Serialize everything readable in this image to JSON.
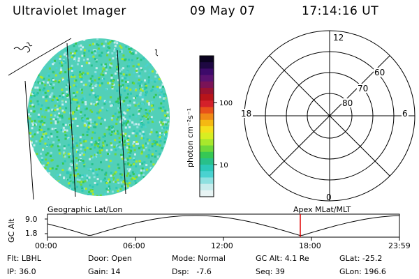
{
  "header": {
    "title": "Ultraviolet Imager",
    "date": "09 May 07",
    "time": "17:14:16 UT"
  },
  "colorbar": {
    "unit_label": "photon cm⁻²s⁻¹",
    "ticks": [
      "100",
      "10"
    ],
    "colors": [
      "#0b0320",
      "#1e0842",
      "#3d0a6a",
      "#5a1270",
      "#7a1357",
      "#9a1230",
      "#b8141a",
      "#d4202a",
      "#e8521a",
      "#f08a16",
      "#f5b912",
      "#f5e01c",
      "#d8ee22",
      "#a8e82c",
      "#6ed83a",
      "#36c854",
      "#28c08a",
      "#2cc8b8",
      "#4ad2d0",
      "#8ee0e0",
      "#c8ecec",
      "#e8f4f4"
    ]
  },
  "polar": {
    "mlt_labels": {
      "top": "12",
      "left": "18",
      "right": "6",
      "bottom": "0"
    },
    "lat_labels": [
      "60",
      "70",
      "80"
    ]
  },
  "timeline": {
    "left_title": "Geographic Lat/Lon",
    "right_title": "Apex  MLat/MLT",
    "ylabel": "GC Alt",
    "ymax": "9.0",
    "ymin": "1.8",
    "xticks": [
      "00:00",
      "06:00",
      "12:00",
      "18:00",
      "23:59"
    ],
    "marker_time": "17:14:16",
    "marker_color": "#e00000"
  },
  "info": {
    "row1": {
      "filter": "Flt: LBHL",
      "door": "Door: Open",
      "mode": "Mode: Normal",
      "gc_alt": "GC Alt: 4.1 Re",
      "glat": "GLat: -25.2"
    },
    "row2": {
      "ip": "IP: 36.0",
      "gain": "Gain: 14",
      "dsp": "Dsp:   -7.6",
      "seq": "Seq: 39",
      "glon": "GLon: 196.6"
    }
  }
}
